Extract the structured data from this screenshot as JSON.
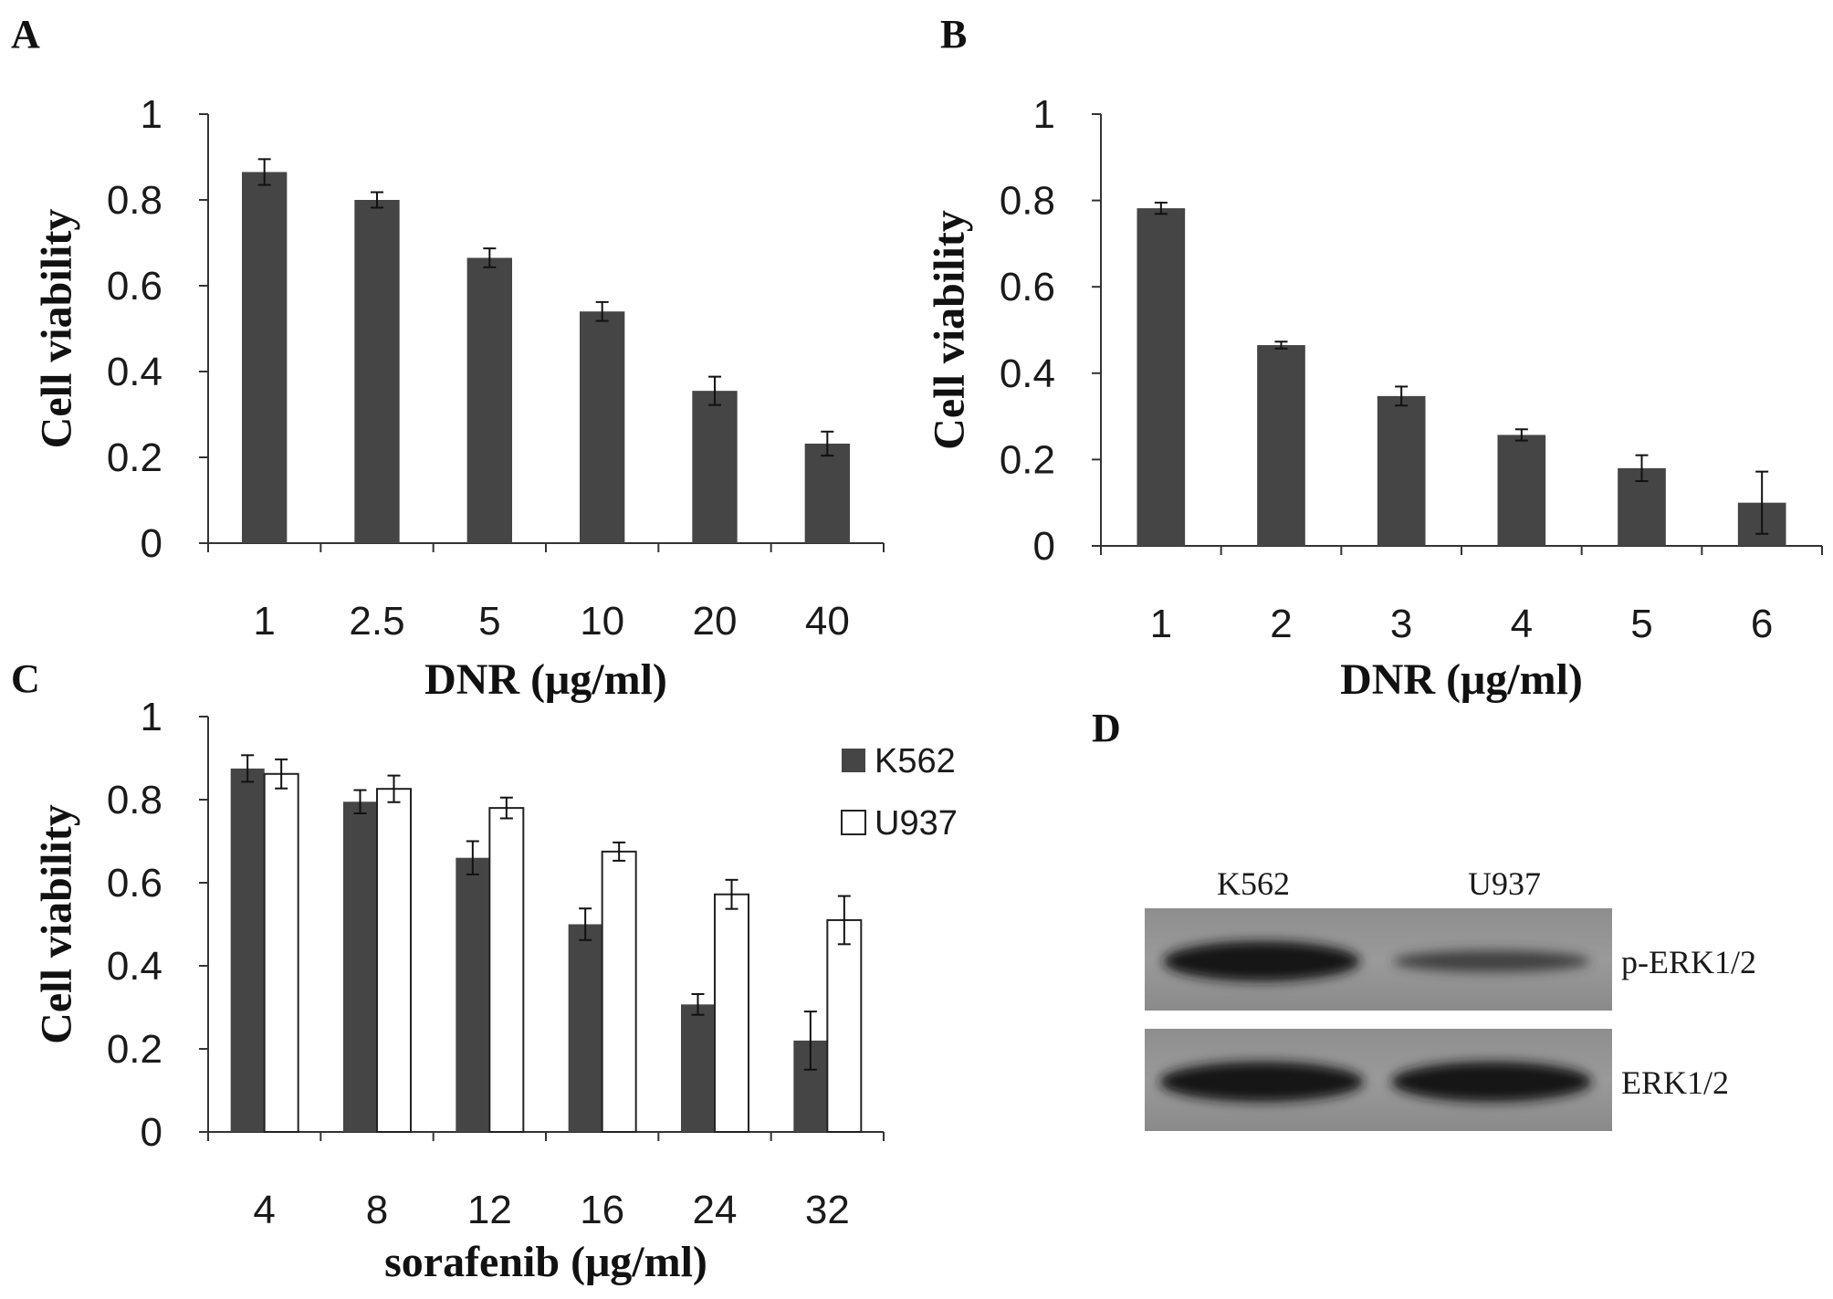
{
  "panels": [
    {
      "letter": "A"
    },
    {
      "letter": "B"
    },
    {
      "letter": "C"
    },
    {
      "letter": "D"
    }
  ],
  "colors": {
    "bar_dark": "#454545",
    "bar_light": "#ffffff",
    "axis": "#333333"
  },
  "chart_data": [
    {
      "type": "bar",
      "panel": "A",
      "categories": [
        "1",
        "2.5",
        "5",
        "10",
        "20",
        "40"
      ],
      "series": [
        {
          "values": [
            0.865,
            0.8,
            0.665,
            0.54,
            0.355,
            0.232
          ],
          "errors": [
            0.03,
            0.018,
            0.022,
            0.022,
            0.033,
            0.028
          ]
        }
      ],
      "yticks": [
        "0",
        "0.2",
        "0.4",
        "0.6",
        "0.8",
        "1"
      ],
      "xlabel": "DNR (μg/ml)",
      "ylabel": "Cell viability",
      "ylim": [
        0,
        1
      ]
    },
    {
      "type": "bar",
      "panel": "B",
      "categories": [
        "1",
        "2",
        "3",
        "4",
        "5",
        "6"
      ],
      "series": [
        {
          "values": [
            0.782,
            0.465,
            0.347,
            0.257,
            0.18,
            0.1
          ],
          "errors": [
            0.013,
            0.008,
            0.022,
            0.013,
            0.03,
            0.072
          ]
        }
      ],
      "yticks": [
        "0",
        "0.2",
        "0.4",
        "0.6",
        "0.8",
        "1"
      ],
      "xlabel": "DNR (μg/ml)",
      "ylabel": "Cell viability",
      "ylim": [
        0,
        1
      ]
    },
    {
      "type": "bar",
      "panel": "C",
      "categories": [
        "4",
        "8",
        "12",
        "16",
        "24",
        "32"
      ],
      "series": [
        {
          "name": "K562",
          "values": [
            0.875,
            0.795,
            0.66,
            0.5,
            0.307,
            0.22
          ],
          "errors": [
            0.032,
            0.028,
            0.04,
            0.038,
            0.025,
            0.07
          ]
        },
        {
          "name": "U937",
          "values": [
            0.862,
            0.826,
            0.78,
            0.675,
            0.572,
            0.51
          ],
          "errors": [
            0.035,
            0.032,
            0.025,
            0.022,
            0.035,
            0.058
          ]
        }
      ],
      "yticks": [
        "0",
        "0.2",
        "0.4",
        "0.6",
        "0.8",
        "1"
      ],
      "xlabel": "sorafenib (μg/ml)",
      "ylabel": "Cell viability",
      "ylim": [
        0,
        1
      ],
      "legend": "top-right"
    }
  ],
  "blot": {
    "lanes": [
      "K562",
      "U937"
    ],
    "rows": [
      {
        "label": "p-ERK1/2",
        "intensities": [
          0.95,
          0.45
        ]
      },
      {
        "label": "ERK1/2",
        "intensities": [
          0.95,
          0.95
        ]
      }
    ]
  }
}
